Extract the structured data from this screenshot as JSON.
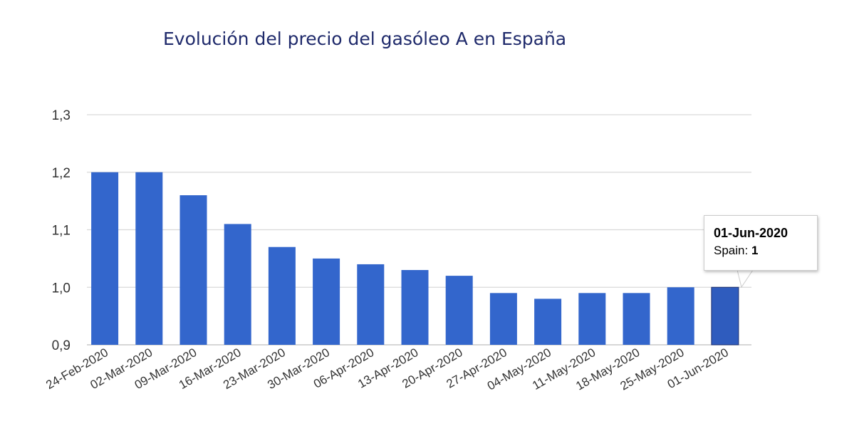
{
  "title": "Evolución del precio del gasóleo A en España",
  "colors": {
    "bar": "#3366cc",
    "bar_highlight": "#2f5cbe",
    "title": "#1f2a6b"
  },
  "chart_data": {
    "type": "bar",
    "title": "Evolución del precio del gasóleo A en España",
    "categories": [
      "24-Feb-2020",
      "02-Mar-2020",
      "09-Mar-2020",
      "16-Mar-2020",
      "23-Mar-2020",
      "30-Mar-2020",
      "06-Apr-2020",
      "13-Apr-2020",
      "20-Apr-2020",
      "27-Apr-2020",
      "04-May-2020",
      "11-May-2020",
      "18-May-2020",
      "25-May-2020",
      "01-Jun-2020"
    ],
    "series": [
      {
        "name": "Spain",
        "values": [
          1.2,
          1.2,
          1.16,
          1.11,
          1.07,
          1.05,
          1.04,
          1.03,
          1.02,
          0.99,
          0.98,
          0.99,
          0.99,
          1.0,
          1.0
        ]
      }
    ],
    "ylim": [
      0.9,
      1.3
    ],
    "yticks": [
      "0,9",
      "1,0",
      "1,1",
      "1,2",
      "1,3"
    ],
    "grid": true,
    "legend": "none"
  },
  "tooltip": {
    "date": "01-Jun-2020",
    "series_label": "Spain:",
    "value": "1"
  }
}
